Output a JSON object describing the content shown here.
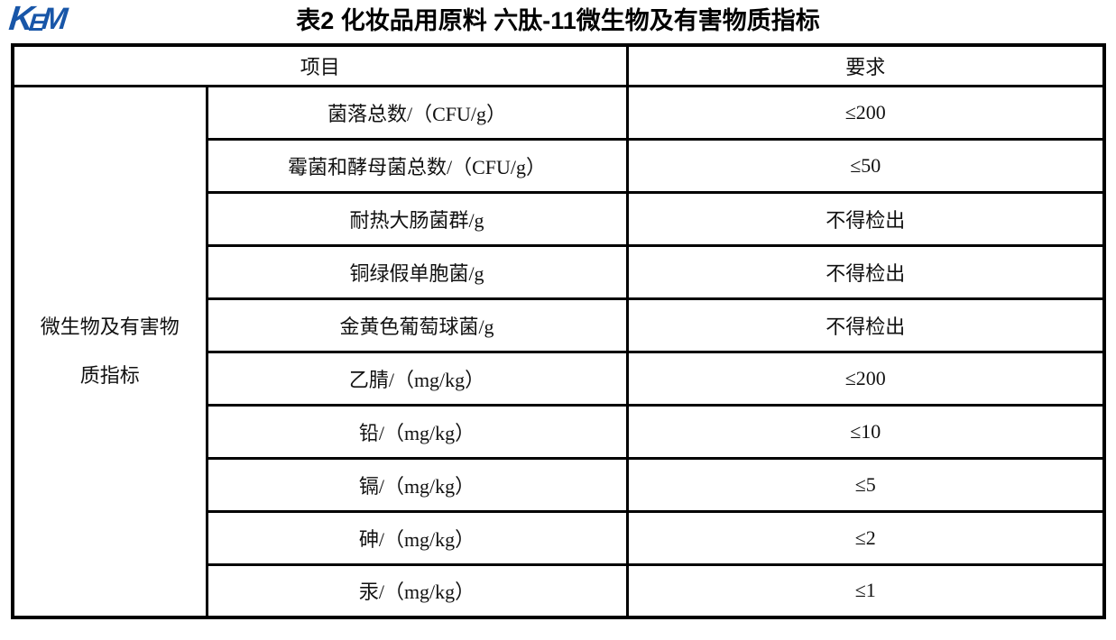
{
  "logo": {
    "text": "KEM",
    "letters": [
      "K",
      "E",
      "M"
    ],
    "color": "#1856a8"
  },
  "title": "表2 化妆品用原料 六肽-11微生物及有害物质指标",
  "colors": {
    "logo_blue": "#1856a8",
    "border": "#000000",
    "text": "#111111",
    "background": "#ffffff"
  },
  "table": {
    "headers": {
      "item": "项目",
      "requirement": "要求"
    },
    "category": {
      "full_text": "微生物及有害物质指标",
      "lines": [
        "微生物及有害物",
        "质指标"
      ]
    },
    "rows": [
      {
        "item": "菌落总数/（CFU/g）",
        "requirement": "≤200"
      },
      {
        "item": "霉菌和酵母菌总数/（CFU/g）",
        "requirement": "≤50"
      },
      {
        "item": "耐热大肠菌群/g",
        "requirement": "不得检出"
      },
      {
        "item": "铜绿假单胞菌/g",
        "requirement": "不得检出"
      },
      {
        "item": "金黄色葡萄球菌/g",
        "requirement": "不得检出"
      },
      {
        "item": "乙腈/（mg/kg）",
        "requirement": "≤200"
      },
      {
        "item": "铅/（mg/kg）",
        "requirement": "≤10"
      },
      {
        "item": "镉/（mg/kg）",
        "requirement": "≤5"
      },
      {
        "item": "砷/（mg/kg）",
        "requirement": "≤2"
      },
      {
        "item": "汞/（mg/kg）",
        "requirement": "≤1"
      }
    ]
  }
}
